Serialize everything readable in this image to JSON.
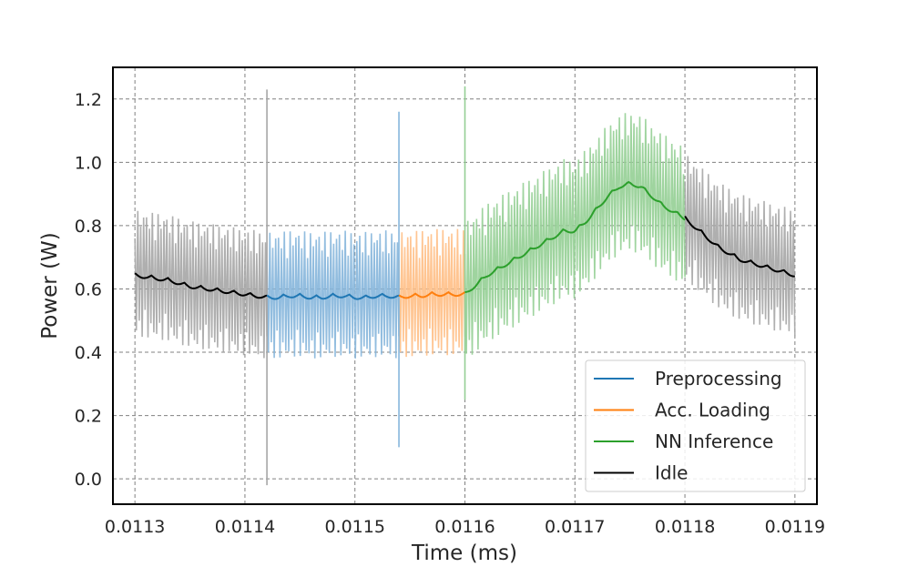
{
  "chart_data": {
    "type": "line",
    "title": "",
    "xlabel": "Time (ms)",
    "ylabel": "Power (W)",
    "xlim": [
      0.01128,
      0.01192
    ],
    "ylim": [
      -0.08,
      1.3
    ],
    "xticks": [
      0.0113,
      0.0114,
      0.0115,
      0.0116,
      0.0117,
      0.0118,
      0.0119
    ],
    "xtick_labels": [
      "0.0113",
      "0.0114",
      "0.0115",
      "0.0116",
      "0.0117",
      "0.0118",
      "0.0119"
    ],
    "yticks": [
      0.0,
      0.2,
      0.4,
      0.6,
      0.8,
      1.0,
      1.2
    ],
    "ytick_labels": [
      "0.0",
      "0.2",
      "0.4",
      "0.6",
      "0.8",
      "1.0",
      "1.2"
    ],
    "grid": true,
    "legend_position": "lower-right",
    "series": [
      {
        "name": "Idle",
        "color": "#000000",
        "band_color": "#a6a6a6",
        "segments": [
          {
            "x": [
              0.0113,
              0.01131,
              0.01132,
              0.01133,
              0.01134,
              0.01135,
              0.01136,
              0.01137,
              0.01138,
              0.01139,
              0.0114,
              0.01141,
              0.01142
            ],
            "y": [
              0.65,
              0.645,
              0.64,
              0.635,
              0.625,
              0.615,
              0.61,
              0.605,
              0.6,
              0.595,
              0.59,
              0.585,
              0.58
            ],
            "band_halfwidth": 0.2,
            "spikes": [
              {
                "x": 0.01142,
                "low": -0.02,
                "high": 1.23
              }
            ]
          },
          {
            "x": [
              0.0118,
              0.01181,
              0.01182,
              0.01183,
              0.01184,
              0.01185,
              0.01186,
              0.01187,
              0.01188,
              0.01189,
              0.0119
            ],
            "y": [
              0.83,
              0.8,
              0.77,
              0.74,
              0.72,
              0.7,
              0.69,
              0.68,
              0.67,
              0.66,
              0.65
            ],
            "band_halfwidth": 0.2
          }
        ]
      },
      {
        "name": "Preprocessing",
        "color": "#1f77b4",
        "band_color": "#86b6dc",
        "segments": [
          {
            "x": [
              0.01142,
              0.01143,
              0.01144,
              0.01145,
              0.01146,
              0.01147,
              0.01148,
              0.01149,
              0.0115,
              0.01151,
              0.01152,
              0.01153,
              0.01154
            ],
            "y": [
              0.58,
              0.58,
              0.585,
              0.585,
              0.58,
              0.58,
              0.585,
              0.585,
              0.58,
              0.58,
              0.585,
              0.585,
              0.58
            ],
            "band_halfwidth": 0.2,
            "spikes": [
              {
                "x": 0.01154,
                "low": 0.1,
                "high": 1.16
              }
            ]
          }
        ]
      },
      {
        "name": "Acc. Loading",
        "color": "#ff7f0e",
        "band_color": "#ffbf86",
        "segments": [
          {
            "x": [
              0.01154,
              0.01155,
              0.01156,
              0.01157,
              0.01158,
              0.01159,
              0.0116
            ],
            "y": [
              0.58,
              0.585,
              0.585,
              0.59,
              0.59,
              0.59,
              0.59
            ],
            "band_halfwidth": 0.2
          }
        ]
      },
      {
        "name": "NN Inference",
        "color": "#2ca02c",
        "band_color": "#95cf95",
        "segments": [
          {
            "x": [
              0.0116,
              0.01161,
              0.01162,
              0.01163,
              0.01164,
              0.01165,
              0.01166,
              0.01167,
              0.01168,
              0.01169,
              0.0117,
              0.01171,
              0.01172,
              0.01173,
              0.01174,
              0.01175,
              0.01176,
              0.01177,
              0.01178,
              0.01179,
              0.0118
            ],
            "y": [
              0.59,
              0.62,
              0.65,
              0.67,
              0.69,
              0.71,
              0.73,
              0.75,
              0.77,
              0.79,
              0.79,
              0.82,
              0.86,
              0.9,
              0.93,
              0.94,
              0.93,
              0.9,
              0.87,
              0.85,
              0.83
            ],
            "band_halfwidth": 0.22,
            "spikes": [
              {
                "x": 0.0116,
                "low": 0.25,
                "high": 1.24
              }
            ]
          }
        ]
      }
    ]
  }
}
